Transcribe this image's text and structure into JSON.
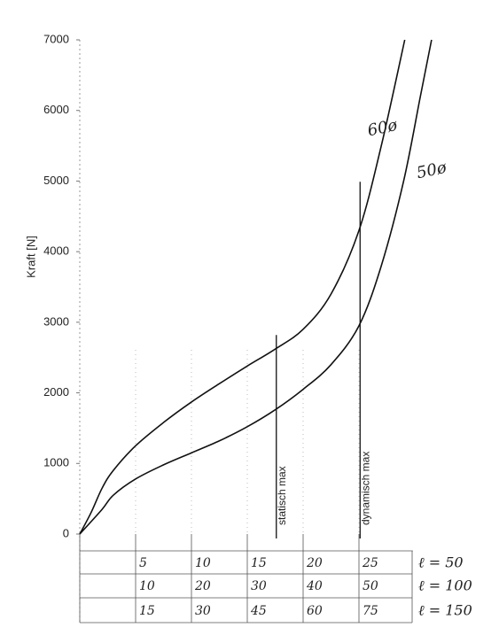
{
  "chart_data": {
    "type": "line",
    "ylabel": "Kraft [N]",
    "series": [
      {
        "name": "60ø",
        "color": "#111111",
        "label_at": [
          25.8,
          5700
        ],
        "x": [
          0,
          1,
          2,
          3,
          5,
          7.5,
          10,
          12.5,
          15,
          17.5,
          20,
          22.5,
          25,
          27,
          29.1
        ],
        "values": [
          0,
          300,
          650,
          900,
          1250,
          1580,
          1870,
          2130,
          2380,
          2620,
          2900,
          3400,
          4300,
          5500,
          7000
        ]
      },
      {
        "name": "50ø",
        "color": "#111111",
        "label_at": [
          30.2,
          5100
        ],
        "x": [
          0,
          2,
          3,
          5,
          7.5,
          10,
          12.5,
          15,
          17.5,
          20,
          22.5,
          25,
          27,
          29,
          30.5,
          31.5
        ],
        "values": [
          0,
          350,
          550,
          780,
          980,
          1150,
          1320,
          1520,
          1760,
          2050,
          2400,
          2950,
          3800,
          5000,
          6200,
          7000
        ]
      }
    ],
    "annotations": [
      {
        "text": "statisch max",
        "x": 17.6,
        "y": 2820
      },
      {
        "text": "dynamisch max",
        "x": 25.1,
        "y": 4990
      }
    ],
    "xlim": [
      0,
      33
    ],
    "ylim": [
      0,
      7000
    ],
    "yticks": [
      0,
      1000,
      2000,
      3000,
      4000,
      5000,
      6000,
      7000
    ],
    "xticks": [
      5,
      10,
      15,
      20,
      25
    ],
    "x_rows": [
      {
        "label": "ℓ = 50",
        "ticks": [
          5,
          10,
          15,
          20,
          25
        ]
      },
      {
        "label": "ℓ = 100",
        "ticks": [
          10,
          20,
          30,
          40,
          50
        ]
      },
      {
        "label": "ℓ = 150",
        "ticks": [
          15,
          30,
          45,
          60,
          75
        ]
      }
    ],
    "grid": true
  }
}
